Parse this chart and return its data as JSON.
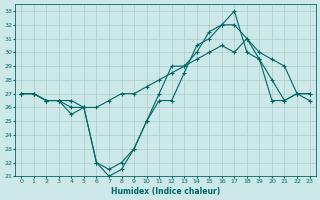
{
  "xlabel": "Humidex (Indice chaleur)",
  "xlim": [
    -0.5,
    23.5
  ],
  "ylim": [
    21,
    33.5
  ],
  "yticks": [
    21,
    22,
    23,
    24,
    25,
    26,
    27,
    28,
    29,
    30,
    31,
    32,
    33
  ],
  "xticks": [
    0,
    1,
    2,
    3,
    4,
    5,
    6,
    7,
    8,
    9,
    10,
    11,
    12,
    13,
    14,
    15,
    16,
    17,
    18,
    19,
    20,
    21,
    22,
    23
  ],
  "bg_color": "#cce8e8",
  "grid_color": "#aacccc",
  "line_color": "#006666",
  "line1_x": [
    0,
    1,
    2,
    3,
    4,
    5,
    6,
    7,
    8,
    9,
    10,
    11,
    12,
    13,
    14,
    15,
    16,
    17,
    18,
    19,
    20,
    21,
    22,
    23
  ],
  "line1_y": [
    27,
    27,
    26.5,
    26.5,
    26.5,
    26,
    26,
    26.5,
    27,
    27,
    27.5,
    28,
    28.5,
    29,
    29.5,
    30,
    30.5,
    30,
    31,
    29.5,
    26.5,
    26.5,
    27,
    26.5
  ],
  "line2_x": [
    0,
    1,
    2,
    3,
    4,
    5,
    6,
    7,
    8,
    9,
    10,
    11,
    12,
    13,
    14,
    15,
    16,
    17,
    18,
    19,
    20,
    21,
    22,
    23
  ],
  "line2_y": [
    27,
    27,
    26.5,
    26.5,
    25.5,
    26,
    22,
    21.5,
    22,
    23,
    25,
    26.5,
    26.5,
    28.5,
    30.5,
    31,
    32,
    33,
    30,
    29.5,
    28,
    26.5,
    27,
    27
  ],
  "line3_x": [
    0,
    1,
    2,
    3,
    4,
    5,
    6,
    7,
    8,
    9,
    10,
    11,
    12,
    13,
    14,
    15,
    16,
    17,
    18,
    19,
    20,
    21,
    22,
    23
  ],
  "line3_y": [
    27,
    27,
    26.5,
    26.5,
    26,
    26,
    22,
    21,
    21.5,
    23,
    25,
    27,
    29,
    29,
    30,
    31.5,
    32,
    32,
    31,
    30,
    29.5,
    29,
    27,
    27
  ]
}
